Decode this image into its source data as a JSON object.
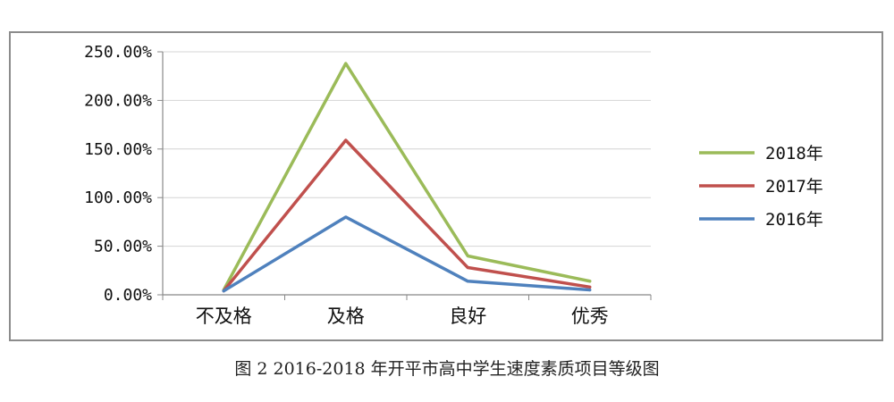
{
  "caption": "图 2 2016-2018 年开平市高中学生速度素质项目等级图",
  "chart_data": {
    "type": "line",
    "categories": [
      "不及格",
      "及格",
      "良好",
      "优秀"
    ],
    "y_ticks": [
      "0.00%",
      "50.00%",
      "100.00%",
      "150.00%",
      "200.00%",
      "250.00%"
    ],
    "ylim": [
      0,
      250
    ],
    "grid": true,
    "legend_position": "right",
    "series": [
      {
        "name": "2018年",
        "color": "#9bbb59",
        "values": [
          5,
          238,
          40,
          14
        ]
      },
      {
        "name": "2017年",
        "color": "#c0504d",
        "values": [
          4,
          159,
          28,
          8
        ]
      },
      {
        "name": "2016年",
        "color": "#4f81bd",
        "values": [
          4,
          80,
          14,
          5
        ]
      }
    ]
  }
}
